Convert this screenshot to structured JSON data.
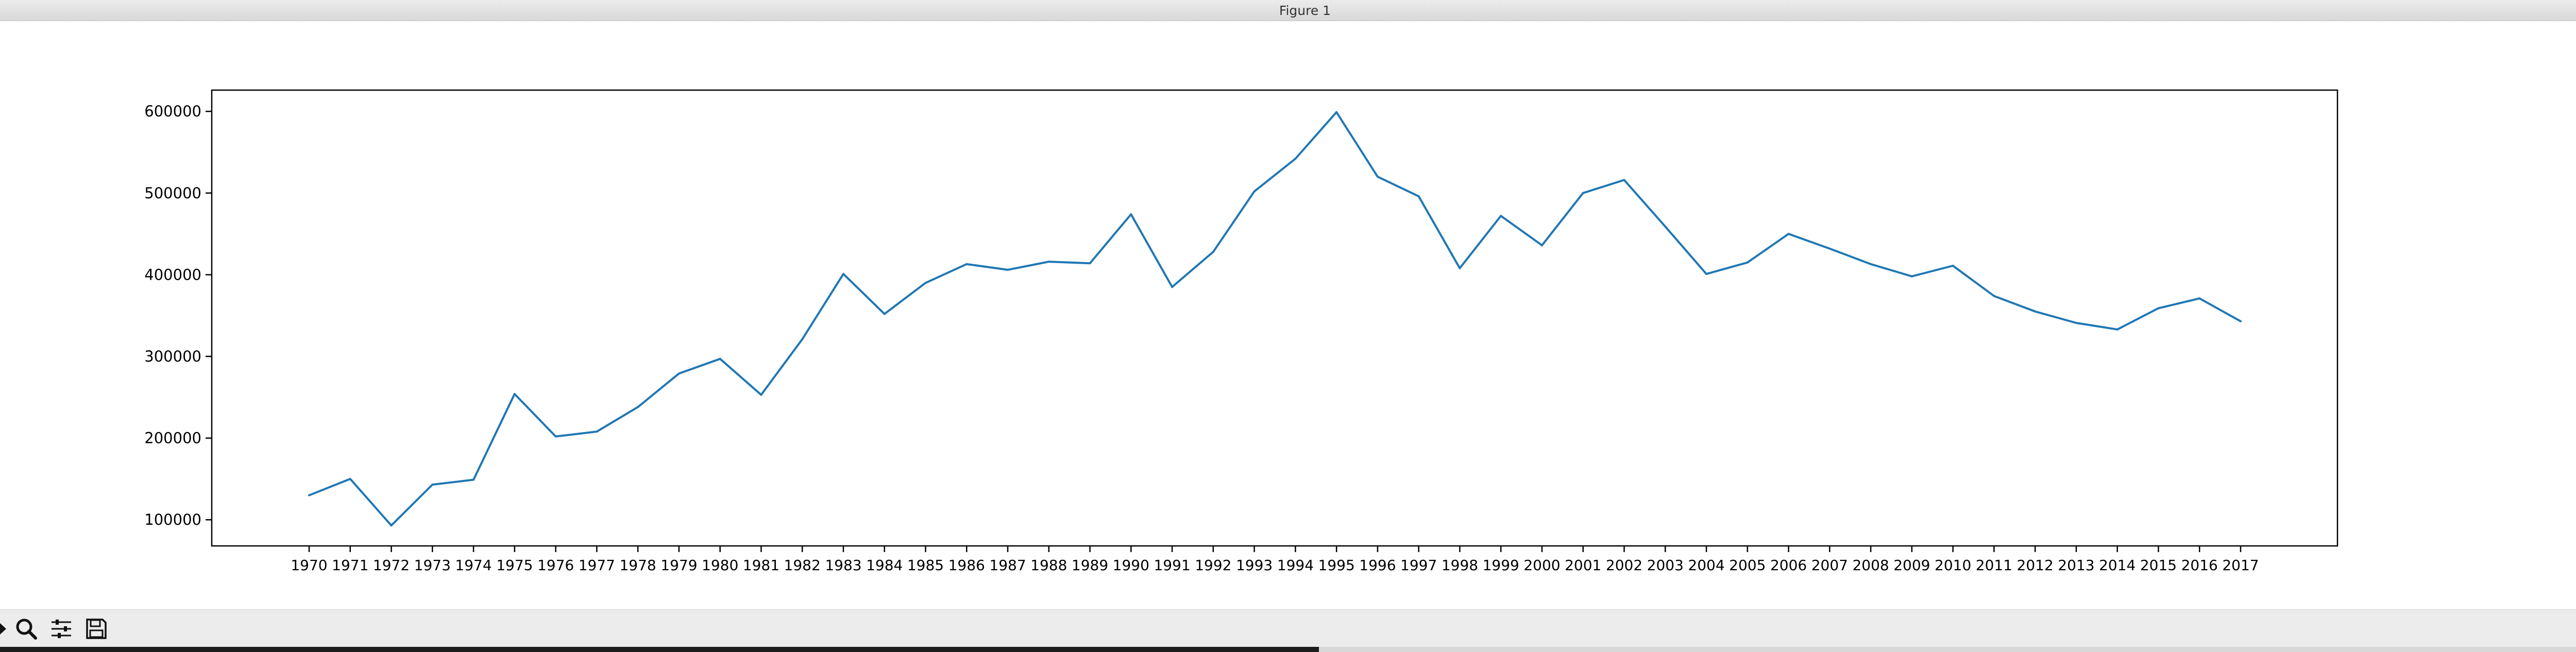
{
  "window": {
    "title": "Figure 1"
  },
  "toolbar": {
    "buttons": [
      {
        "name": "forward-button",
        "icon": "arrow-right-icon"
      },
      {
        "name": "zoom-button",
        "icon": "magnifier-icon"
      },
      {
        "name": "configure-subplots-button",
        "icon": "sliders-icon"
      },
      {
        "name": "save-button",
        "icon": "floppy-disk-icon"
      }
    ]
  },
  "chart_data": {
    "type": "line",
    "title": "",
    "xlabel": "",
    "ylabel": "",
    "color": "#1f77b4",
    "grid": false,
    "ylim": [
      68000,
      626000
    ],
    "yticks": [
      100000,
      200000,
      300000,
      400000,
      500000,
      600000
    ],
    "x": [
      "1970",
      "1971",
      "1972",
      "1973",
      "1974",
      "1975",
      "1976",
      "1977",
      "1978",
      "1979",
      "1980",
      "1981",
      "1982",
      "1983",
      "1984",
      "1985",
      "1986",
      "1987",
      "1988",
      "1989",
      "1990",
      "1991",
      "1992",
      "1993",
      "1994",
      "1995",
      "1996",
      "1997",
      "1998",
      "1999",
      "2000",
      "2001",
      "2002",
      "2003",
      "2004",
      "2005",
      "2006",
      "2007",
      "2008",
      "2009",
      "2010",
      "2011",
      "2012",
      "2013",
      "2014",
      "2015",
      "2016",
      "2017"
    ],
    "series": [
      {
        "values": [
          130000,
          150000,
          93000,
          143000,
          149000,
          254000,
          202000,
          208000,
          238000,
          279000,
          297000,
          253000,
          321000,
          401000,
          352000,
          390000,
          413000,
          406000,
          416000,
          414000,
          474000,
          385000,
          428000,
          502000,
          542000,
          599000,
          520000,
          496000,
          408000,
          472000,
          436000,
          500000,
          516000,
          459000,
          401000,
          415000,
          450000,
          432000,
          413000,
          398000,
          411000,
          374000,
          355000,
          341000,
          333000,
          359000,
          371000,
          343000
        ]
      }
    ]
  }
}
